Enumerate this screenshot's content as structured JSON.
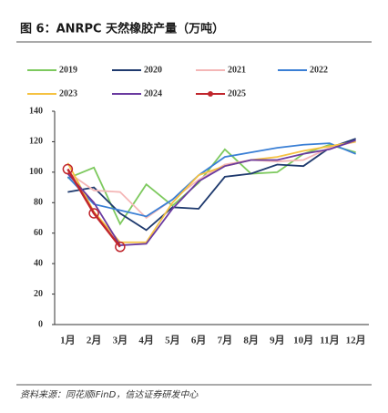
{
  "chart_data": {
    "type": "line",
    "title": "图 6：ANRPC 天然橡胶产量（万吨）",
    "source": "资料来源：同花顺iFinD，信达证券研发中心",
    "categories": [
      "1月",
      "2月",
      "3月",
      "4月",
      "5月",
      "6月",
      "7月",
      "8月",
      "9月",
      "10月",
      "11月",
      "12月"
    ],
    "ylim": [
      0,
      140
    ],
    "yticks": [
      0,
      20,
      40,
      60,
      80,
      100,
      120,
      140
    ],
    "series": [
      {
        "name": "2019",
        "color": "#7dc95e",
        "values": [
          96,
          103,
          66,
          92,
          78,
          93,
          115,
          99,
          100,
          112,
          118,
          113
        ]
      },
      {
        "name": "2020",
        "color": "#1f3a6e",
        "values": [
          87,
          90,
          73,
          62,
          77,
          76,
          97,
          99,
          105,
          104,
          116,
          122
        ]
      },
      {
        "name": "2021",
        "color": "#f4b6b6",
        "values": [
          100,
          88,
          87,
          70,
          82,
          95,
          105,
          108,
          107,
          108,
          116,
          120
        ]
      },
      {
        "name": "2022",
        "color": "#3a7fd5",
        "values": [
          97,
          79,
          75,
          71,
          82,
          98,
          110,
          113,
          116,
          118,
          119,
          112
        ]
      },
      {
        "name": "2023",
        "color": "#f5c242",
        "values": [
          106,
          74,
          54,
          54,
          80,
          98,
          104,
          108,
          110,
          114,
          117,
          120
        ]
      },
      {
        "name": "2024",
        "color": "#6a3aa0",
        "values": [
          99,
          80,
          52,
          53,
          76,
          94,
          104,
          108,
          108,
          112,
          115,
          121
        ]
      },
      {
        "name": "2025",
        "color": "#c0262d",
        "marker": true,
        "values": [
          102,
          73,
          51,
          null,
          null,
          null,
          null,
          null,
          null,
          null,
          null,
          null
        ]
      }
    ]
  }
}
